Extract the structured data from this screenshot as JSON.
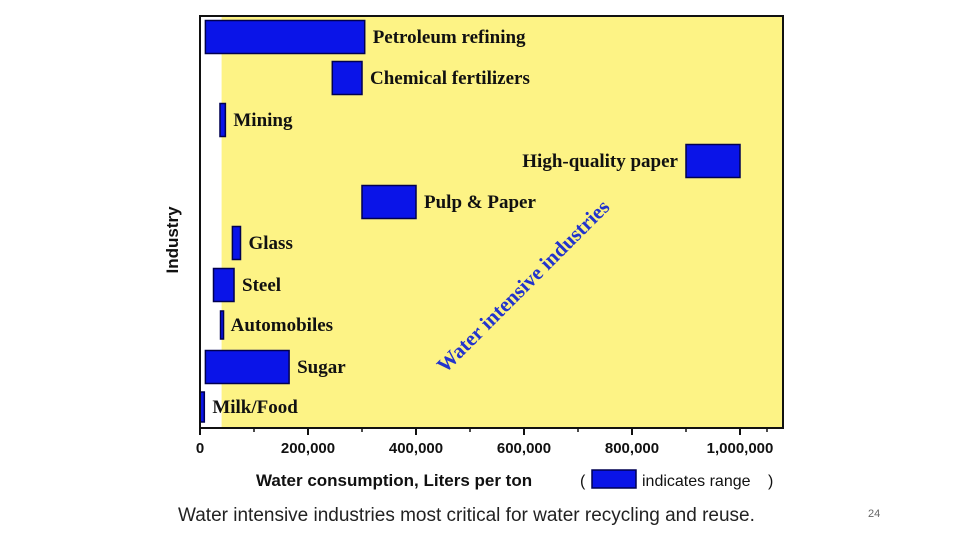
{
  "chart_data": {
    "type": "bar",
    "orientation": "horizontal",
    "bar_kind": "range",
    "ylabel": "Industry",
    "xlabel": "Water consumption, Liters per ton",
    "xlim": [
      0,
      1080000
    ],
    "xticks": [
      0,
      200000,
      400000,
      600000,
      800000,
      1000000
    ],
    "xtick_labels": [
      "0",
      "200,000",
      "400,000",
      "600,000",
      "800,000",
      "1,000,000"
    ],
    "legend": {
      "open": "(",
      "text": "indicates range",
      "close": ")",
      "placement": "after x-axis title"
    },
    "annotation": "Water intensive industries",
    "shaded_region_start": 40000,
    "categories": [
      "Petroleum refining",
      "Chemical fertilizers",
      "Mining",
      "High-quality paper",
      "Pulp & Paper",
      "Glass",
      "Steel",
      "Automobiles",
      "Sugar",
      "Milk/Food"
    ],
    "ranges": [
      [
        10000,
        305000
      ],
      [
        245000,
        300000
      ],
      [
        37000,
        47000
      ],
      [
        900000,
        1000000
      ],
      [
        300000,
        400000
      ],
      [
        60000,
        75000
      ],
      [
        25000,
        63000
      ],
      [
        38000,
        42000
      ],
      [
        10000,
        165000
      ],
      [
        0,
        8000
      ]
    ]
  },
  "colors": {
    "bar_fill": "#0a14e8",
    "bar_stroke": "#000050",
    "shade": "#fdf385",
    "annotation": "#2233cc"
  },
  "caption": "Water intensive industries most critical for water recycling and reuse.",
  "page_number": "24"
}
